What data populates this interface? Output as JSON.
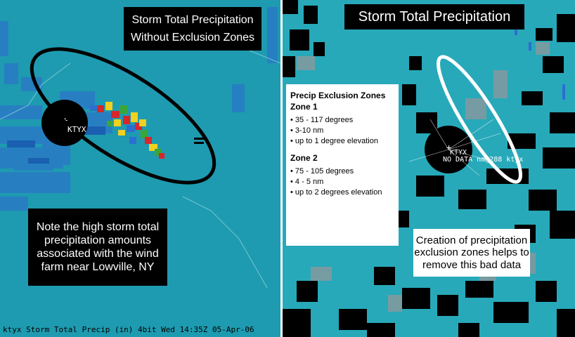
{
  "left_panel": {
    "title_line1": "Storm Total Precipitation",
    "title_line2": "Without Exclusion Zones",
    "station_label": "KTYX",
    "note": "Note the high storm total precipitation amounts associated with the wind farm near Lowville, NY",
    "status_bar": "ktyx Storm Total Precip (in)  4bit Wed 14:35Z 05-Apr-06"
  },
  "right_panel": {
    "title": "Storm Total Precipitation",
    "station_label": "KTYX",
    "radar_readout": "NO DATA  nm@288  ktyx",
    "zones_box": {
      "heading": "Precip Exclusion Zones",
      "zone1_heading": "Zone 1",
      "zone1_items": [
        "35 - 117 degrees",
        "3-10 nm",
        "up to 1 degree elevation"
      ],
      "zone2_heading": "Zone 2",
      "zone2_items": [
        "75 - 105 degrees",
        "4 - 5 nm",
        "up to 2 degrees elevation"
      ]
    },
    "creation_note": "Creation of precipitation exclusion zones helps to remove this bad data"
  },
  "colors": {
    "left_background": "#1e9bb0",
    "right_background": "#27a9b9",
    "annotation_black": "#000000",
    "annotation_white": "#ffffff",
    "clutter_red": "#d8262a",
    "clutter_yellow": "#f0d020",
    "clutter_green": "#3aa63a",
    "clutter_blue": "#2b6fd0"
  }
}
